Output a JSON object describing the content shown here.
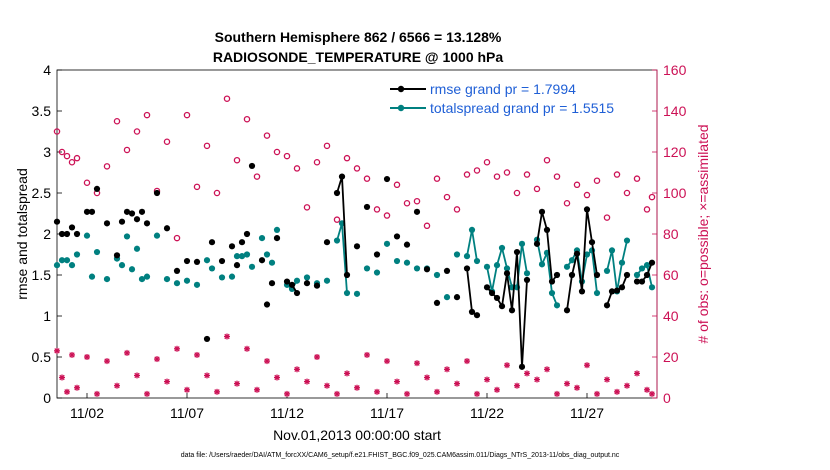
{
  "chart_data": {
    "type": "line",
    "title": "Southern Hemisphere 862 / 6566 = 13.128%",
    "subtitle": "RADIOSONDE_TEMPERATURE @ 1000 hPa",
    "xlabel": "Nov.01,2013 00:00:00 start",
    "ylabel": "rmse and totalspread",
    "ylabel_right": "# of obs: o=possible; ×=assimilated",
    "footnote": "data file: /Users/raeder/DAI/ATM_forcXX/CAM6_setup/f.e21.FHIST_BGC.f09_025.CAM6assim.011/Diags_NTrS_2013-11/obs_diag_output.nc",
    "xlim": [
      0.5,
      30.5
    ],
    "ylim": [
      0,
      4
    ],
    "ylim_right": [
      0,
      160
    ],
    "x_ticks": [
      2,
      7,
      12,
      17,
      22,
      27
    ],
    "x_tick_labels": [
      "11/02",
      "11/07",
      "11/12",
      "11/17",
      "11/22",
      "11/27"
    ],
    "y_ticks": [
      "0",
      "0.5",
      "1",
      "1.5",
      "2",
      "2.5",
      "3",
      "3.5",
      "4"
    ],
    "y_ticks_right": [
      "0",
      "20",
      "40",
      "60",
      "80",
      "100",
      "120",
      "140",
      "160"
    ],
    "legend_position": "top-right",
    "grid": false,
    "colors": {
      "rmse": "#000000",
      "spread": "#008080",
      "obs": "#cc1155",
      "right_axis": "#cc1155"
    },
    "series": [
      {
        "name": "rmse grand pr = 1.7994",
        "color": "#000000",
        "x": [
          0.5,
          0.75,
          1.0,
          1.25,
          1.5,
          2.0,
          2.25,
          2.5,
          3.0,
          3.5,
          3.75,
          4.0,
          4.25,
          4.5,
          4.75,
          5.0,
          5.5,
          6.0,
          6.5,
          7.0,
          7.5,
          8.0,
          8.25,
          8.75,
          9.25,
          9.5,
          9.75,
          10.0,
          10.25,
          10.75,
          11.0,
          11.25,
          11.5,
          12.0,
          12.25,
          12.5,
          13.0,
          13.5,
          14.0,
          14.5,
          14.75,
          15.0,
          15.5,
          16.0,
          16.5,
          17.0,
          17.5,
          18.0,
          18.5,
          19.0,
          19.5,
          20.0,
          20.5,
          21.0,
          21.25,
          21.5,
          22.0,
          22.25,
          22.5,
          22.75,
          23.0,
          23.25,
          23.5,
          23.75,
          24.0,
          24.5,
          24.75,
          25.0,
          25.25,
          25.5,
          26.0,
          26.25,
          26.5,
          26.75,
          27.0,
          27.25,
          27.5,
          28.0,
          28.25,
          28.5,
          28.75,
          29.0,
          29.5,
          29.75,
          30.0,
          30.25
        ],
        "y": [
          2.15,
          2.0,
          2.0,
          2.08,
          2.0,
          2.27,
          2.27,
          2.55,
          2.13,
          1.74,
          2.15,
          2.27,
          2.25,
          2.18,
          2.27,
          2.13,
          2.5,
          2.07,
          1.55,
          1.67,
          1.66,
          0.72,
          1.9,
          1.67,
          1.85,
          1.62,
          1.9,
          2.0,
          2.83,
          1.68,
          1.14,
          1.4,
          1.95,
          1.42,
          1.38,
          1.28,
          1.4,
          1.37,
          1.9,
          2.5,
          2.7,
          1.5,
          1.85,
          2.33,
          1.75,
          2.67,
          1.97,
          1.87,
          2.27,
          1.57,
          1.16,
          1.55,
          1.23,
          1.58,
          1.05,
          1.01,
          1.35,
          1.28,
          1.22,
          1.12,
          1.52,
          1.07,
          1.78,
          0.38,
          1.44,
          1.88,
          2.27,
          2.05,
          1.42,
          1.5,
          1.07,
          1.5,
          1.76,
          1.3,
          2.3,
          1.9,
          1.5,
          1.13,
          1.3,
          1.31,
          1.35,
          1.5,
          1.42,
          1.42,
          1.5,
          1.65
        ],
        "breaks_after": [
          2,
          9,
          15,
          21,
          28,
          33
        ]
      },
      {
        "name": "totalspread grand pr = 1.5515",
        "color": "#008080",
        "x": [
          0.5,
          0.75,
          1.0,
          1.25,
          1.5,
          2.0,
          2.25,
          2.5,
          3.0,
          3.5,
          3.75,
          4.0,
          4.25,
          4.5,
          4.75,
          5.0,
          5.5,
          6.0,
          6.5,
          7.0,
          7.5,
          8.0,
          8.25,
          8.75,
          9.25,
          9.5,
          9.75,
          10.0,
          10.25,
          10.75,
          11.0,
          11.25,
          11.5,
          12.0,
          12.25,
          12.5,
          13.0,
          13.5,
          14.0,
          14.5,
          14.75,
          15.0,
          15.5,
          16.0,
          16.5,
          17.0,
          17.5,
          18.0,
          18.5,
          19.0,
          19.5,
          20.0,
          20.5,
          21.0,
          21.25,
          21.5,
          22.0,
          22.25,
          22.5,
          22.75,
          23.0,
          23.25,
          23.5,
          23.75,
          24.0,
          24.5,
          24.75,
          25.0,
          25.25,
          25.5,
          26.0,
          26.25,
          26.5,
          26.75,
          27.0,
          27.25,
          27.5,
          28.0,
          28.25,
          28.5,
          28.75,
          29.0,
          29.5,
          29.75,
          30.0,
          30.25
        ],
        "y": [
          1.62,
          1.68,
          1.68,
          1.62,
          1.75,
          1.98,
          1.48,
          1.78,
          1.45,
          1.7,
          1.62,
          1.97,
          1.57,
          1.82,
          1.45,
          1.48,
          1.98,
          1.45,
          1.4,
          1.43,
          1.38,
          1.68,
          1.58,
          1.47,
          1.48,
          1.73,
          1.73,
          1.75,
          1.6,
          1.95,
          1.75,
          1.65,
          2.05,
          1.38,
          1.33,
          1.43,
          1.47,
          1.4,
          1.43,
          1.92,
          2.13,
          1.28,
          1.27,
          1.58,
          1.53,
          1.88,
          1.67,
          1.65,
          1.58,
          1.58,
          1.5,
          1.23,
          1.75,
          1.73,
          2.05,
          1.67,
          1.6,
          1.3,
          1.62,
          1.83,
          1.58,
          1.35,
          1.35,
          1.88,
          1.52,
          1.93,
          1.63,
          1.77,
          1.28,
          1.13,
          1.6,
          1.68,
          1.8,
          1.42,
          1.75,
          1.8,
          1.28,
          1.55,
          1.8,
          1.3,
          1.65,
          1.92,
          1.5,
          1.58,
          1.62,
          1.35
        ],
        "breaks_after": [
          2,
          9,
          15,
          21,
          28,
          33
        ]
      },
      {
        "name": "possible",
        "axis": "right",
        "color": "#cc1155",
        "x": [
          0.5,
          0.75,
          1.0,
          1.25,
          1.5,
          2.0,
          2.5,
          3.0,
          3.5,
          4.0,
          4.5,
          5.0,
          5.5,
          6.0,
          6.5,
          7.0,
          7.5,
          8.0,
          8.5,
          9.0,
          9.5,
          10.0,
          10.5,
          11.0,
          11.5,
          12.0,
          12.5,
          13.0,
          13.5,
          14.0,
          14.5,
          15.0,
          15.5,
          16.0,
          16.5,
          17.0,
          17.5,
          18.0,
          18.5,
          19.0,
          19.5,
          20.0,
          20.5,
          21.0,
          21.5,
          22.0,
          22.5,
          23.0,
          23.5,
          24.0,
          24.5,
          25.0,
          25.5,
          26.0,
          26.5,
          27.0,
          27.5,
          28.0,
          28.5,
          29.0,
          29.5,
          30.0,
          30.25
        ],
        "y": [
          130,
          120,
          118,
          115,
          117,
          105,
          100,
          113,
          135,
          121,
          130,
          138,
          101,
          125,
          78,
          138,
          103,
          123,
          100,
          146,
          116,
          136,
          108,
          128,
          120,
          118,
          112,
          93,
          115,
          123,
          87,
          117,
          112,
          107,
          92,
          89,
          104,
          95,
          96,
          84,
          107,
          98,
          92,
          109,
          111,
          115,
          108,
          110,
          100,
          109,
          102,
          116,
          108,
          95,
          104,
          99,
          106,
          88,
          109,
          100,
          107,
          92,
          98
        ]
      },
      {
        "name": "assimilated",
        "axis": "right",
        "color": "#cc1155",
        "x": [
          0.5,
          0.75,
          1.0,
          1.25,
          1.5,
          2.0,
          2.5,
          3.0,
          3.5,
          4.0,
          4.5,
          5.0,
          5.5,
          6.0,
          6.5,
          7.0,
          7.5,
          8.0,
          8.5,
          9.0,
          9.5,
          10.0,
          10.5,
          11.0,
          11.5,
          12.0,
          12.5,
          13.0,
          13.5,
          14.0,
          14.5,
          15.0,
          15.5,
          16.0,
          16.5,
          17.0,
          17.5,
          18.0,
          18.5,
          19.0,
          19.5,
          20.0,
          20.5,
          21.0,
          21.5,
          22.0,
          22.5,
          23.0,
          23.5,
          24.0,
          24.5,
          25.0,
          25.5,
          26.0,
          26.5,
          27.0,
          27.5,
          28.0,
          28.5,
          29.0,
          29.5,
          30.0,
          30.25
        ],
        "y": [
          23,
          10,
          3,
          21,
          5,
          20,
          2,
          18,
          6,
          22,
          11,
          2,
          19,
          8,
          24,
          4,
          21,
          11,
          3,
          30,
          7,
          24,
          4,
          18,
          10,
          2,
          14,
          8,
          20,
          6,
          2,
          12,
          5,
          21,
          3,
          18,
          8,
          2,
          17,
          10,
          3,
          14,
          7,
          18,
          2,
          9,
          4,
          16,
          6,
          12,
          9,
          14,
          2,
          7,
          5,
          16,
          2,
          9,
          3,
          6,
          12,
          4,
          2
        ]
      }
    ]
  }
}
